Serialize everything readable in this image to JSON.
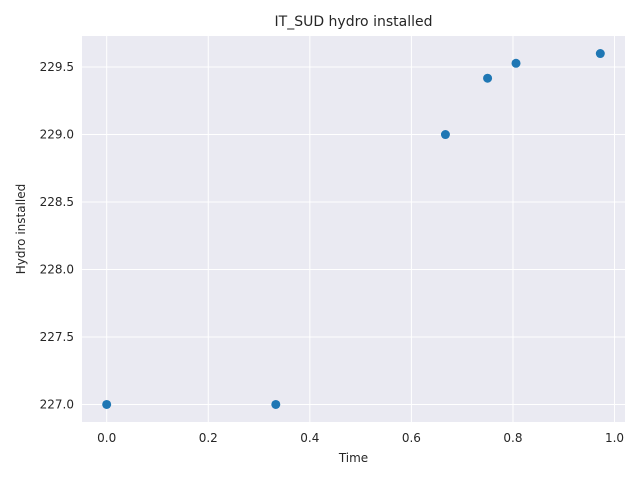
{
  "chart_data": {
    "type": "scatter",
    "title": "IT_SUD hydro installed",
    "xlabel": "Time",
    "ylabel": "Hydro installed",
    "x": [
      0.0,
      0.333,
      0.667,
      0.75,
      0.806,
      0.972
    ],
    "y": [
      227.0,
      227.0,
      229.0,
      229.417,
      229.528,
      229.6
    ],
    "xlim": [
      -0.0486,
      1.0206
    ],
    "ylim": [
      226.87,
      229.73
    ],
    "xticks": [
      0.0,
      0.2,
      0.4,
      0.6,
      0.8,
      1.0
    ],
    "xtick_labels": [
      "0.0",
      "0.2",
      "0.4",
      "0.6",
      "0.8",
      "1.0"
    ],
    "yticks": [
      227.0,
      227.5,
      228.0,
      228.5,
      229.0,
      229.5
    ],
    "ytick_labels": [
      "227.0",
      "227.5",
      "228.0",
      "228.5",
      "229.0",
      "229.5"
    ],
    "grid": true,
    "colors": {
      "background": "#eaeaf2",
      "grid": "#ffffff",
      "marker": "#1f77b4",
      "text": "#262626"
    }
  }
}
